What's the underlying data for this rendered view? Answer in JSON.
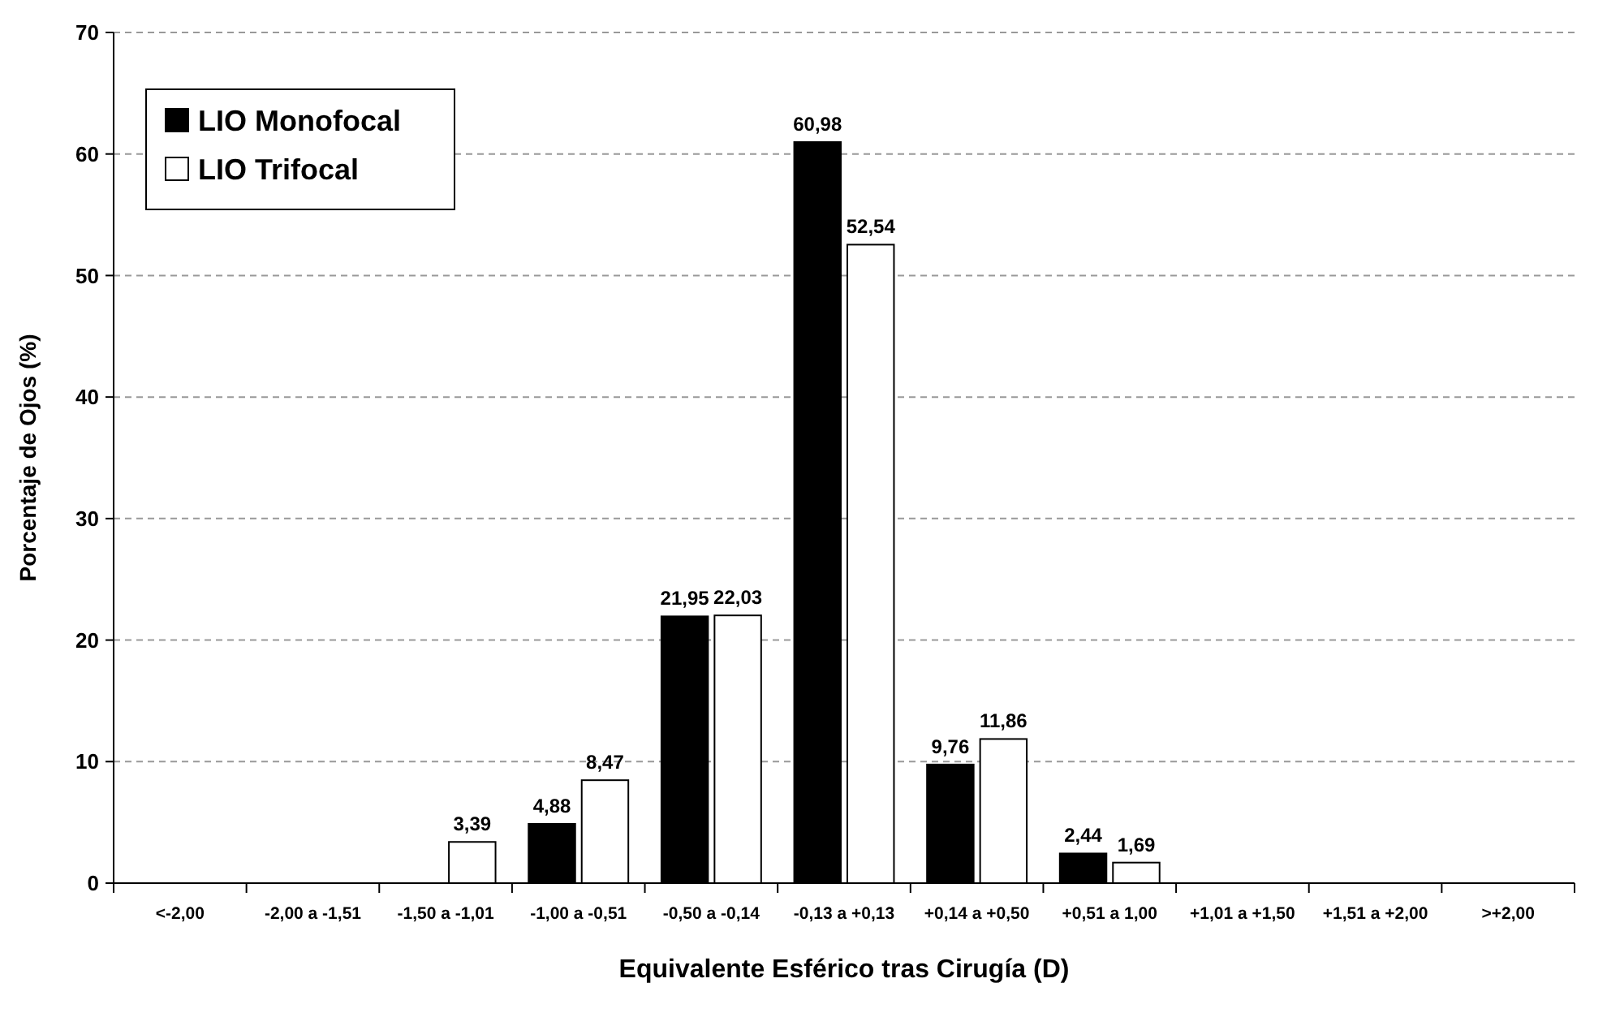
{
  "chart_data": {
    "type": "bar",
    "xlabel": "Equivalente Esférico tras Cirugía (D)",
    "ylabel": "Porcentaje de Ojos (%)",
    "categories": [
      "<-2,00",
      "-2,00 a -1,51",
      "-1,50 a -1,01",
      "-1,00 a -0,51",
      "-0,50 a -0,14",
      "-0,13 a +0,13",
      "+0,14 a +0,50",
      "+0,51 a 1,00",
      "+1,01 a +1,50",
      "+1,51 a +2,00",
      ">+2,00"
    ],
    "series": [
      {
        "name": "LIO Monofocal",
        "color": "#000000",
        "values": [
          0,
          0,
          0,
          4.88,
          21.95,
          60.98,
          9.76,
          2.44,
          0,
          0,
          0
        ],
        "value_labels": [
          null,
          null,
          null,
          "4,88",
          "21,95",
          "60,98",
          "9,76",
          "2,44",
          null,
          null,
          null
        ]
      },
      {
        "name": "LIO Trifocal",
        "color": "#ffffff",
        "values": [
          0,
          0,
          3.39,
          8.47,
          22.03,
          52.54,
          11.86,
          1.69,
          0,
          0,
          0
        ],
        "value_labels": [
          null,
          null,
          "3,39",
          "8,47",
          "22,03",
          "52,54",
          "11,86",
          "1,69",
          null,
          null,
          null
        ]
      }
    ],
    "ylim": [
      0,
      70
    ],
    "yticks": [
      0,
      10,
      20,
      30,
      40,
      50,
      60,
      70
    ],
    "grid": "y",
    "legend": "top left"
  }
}
